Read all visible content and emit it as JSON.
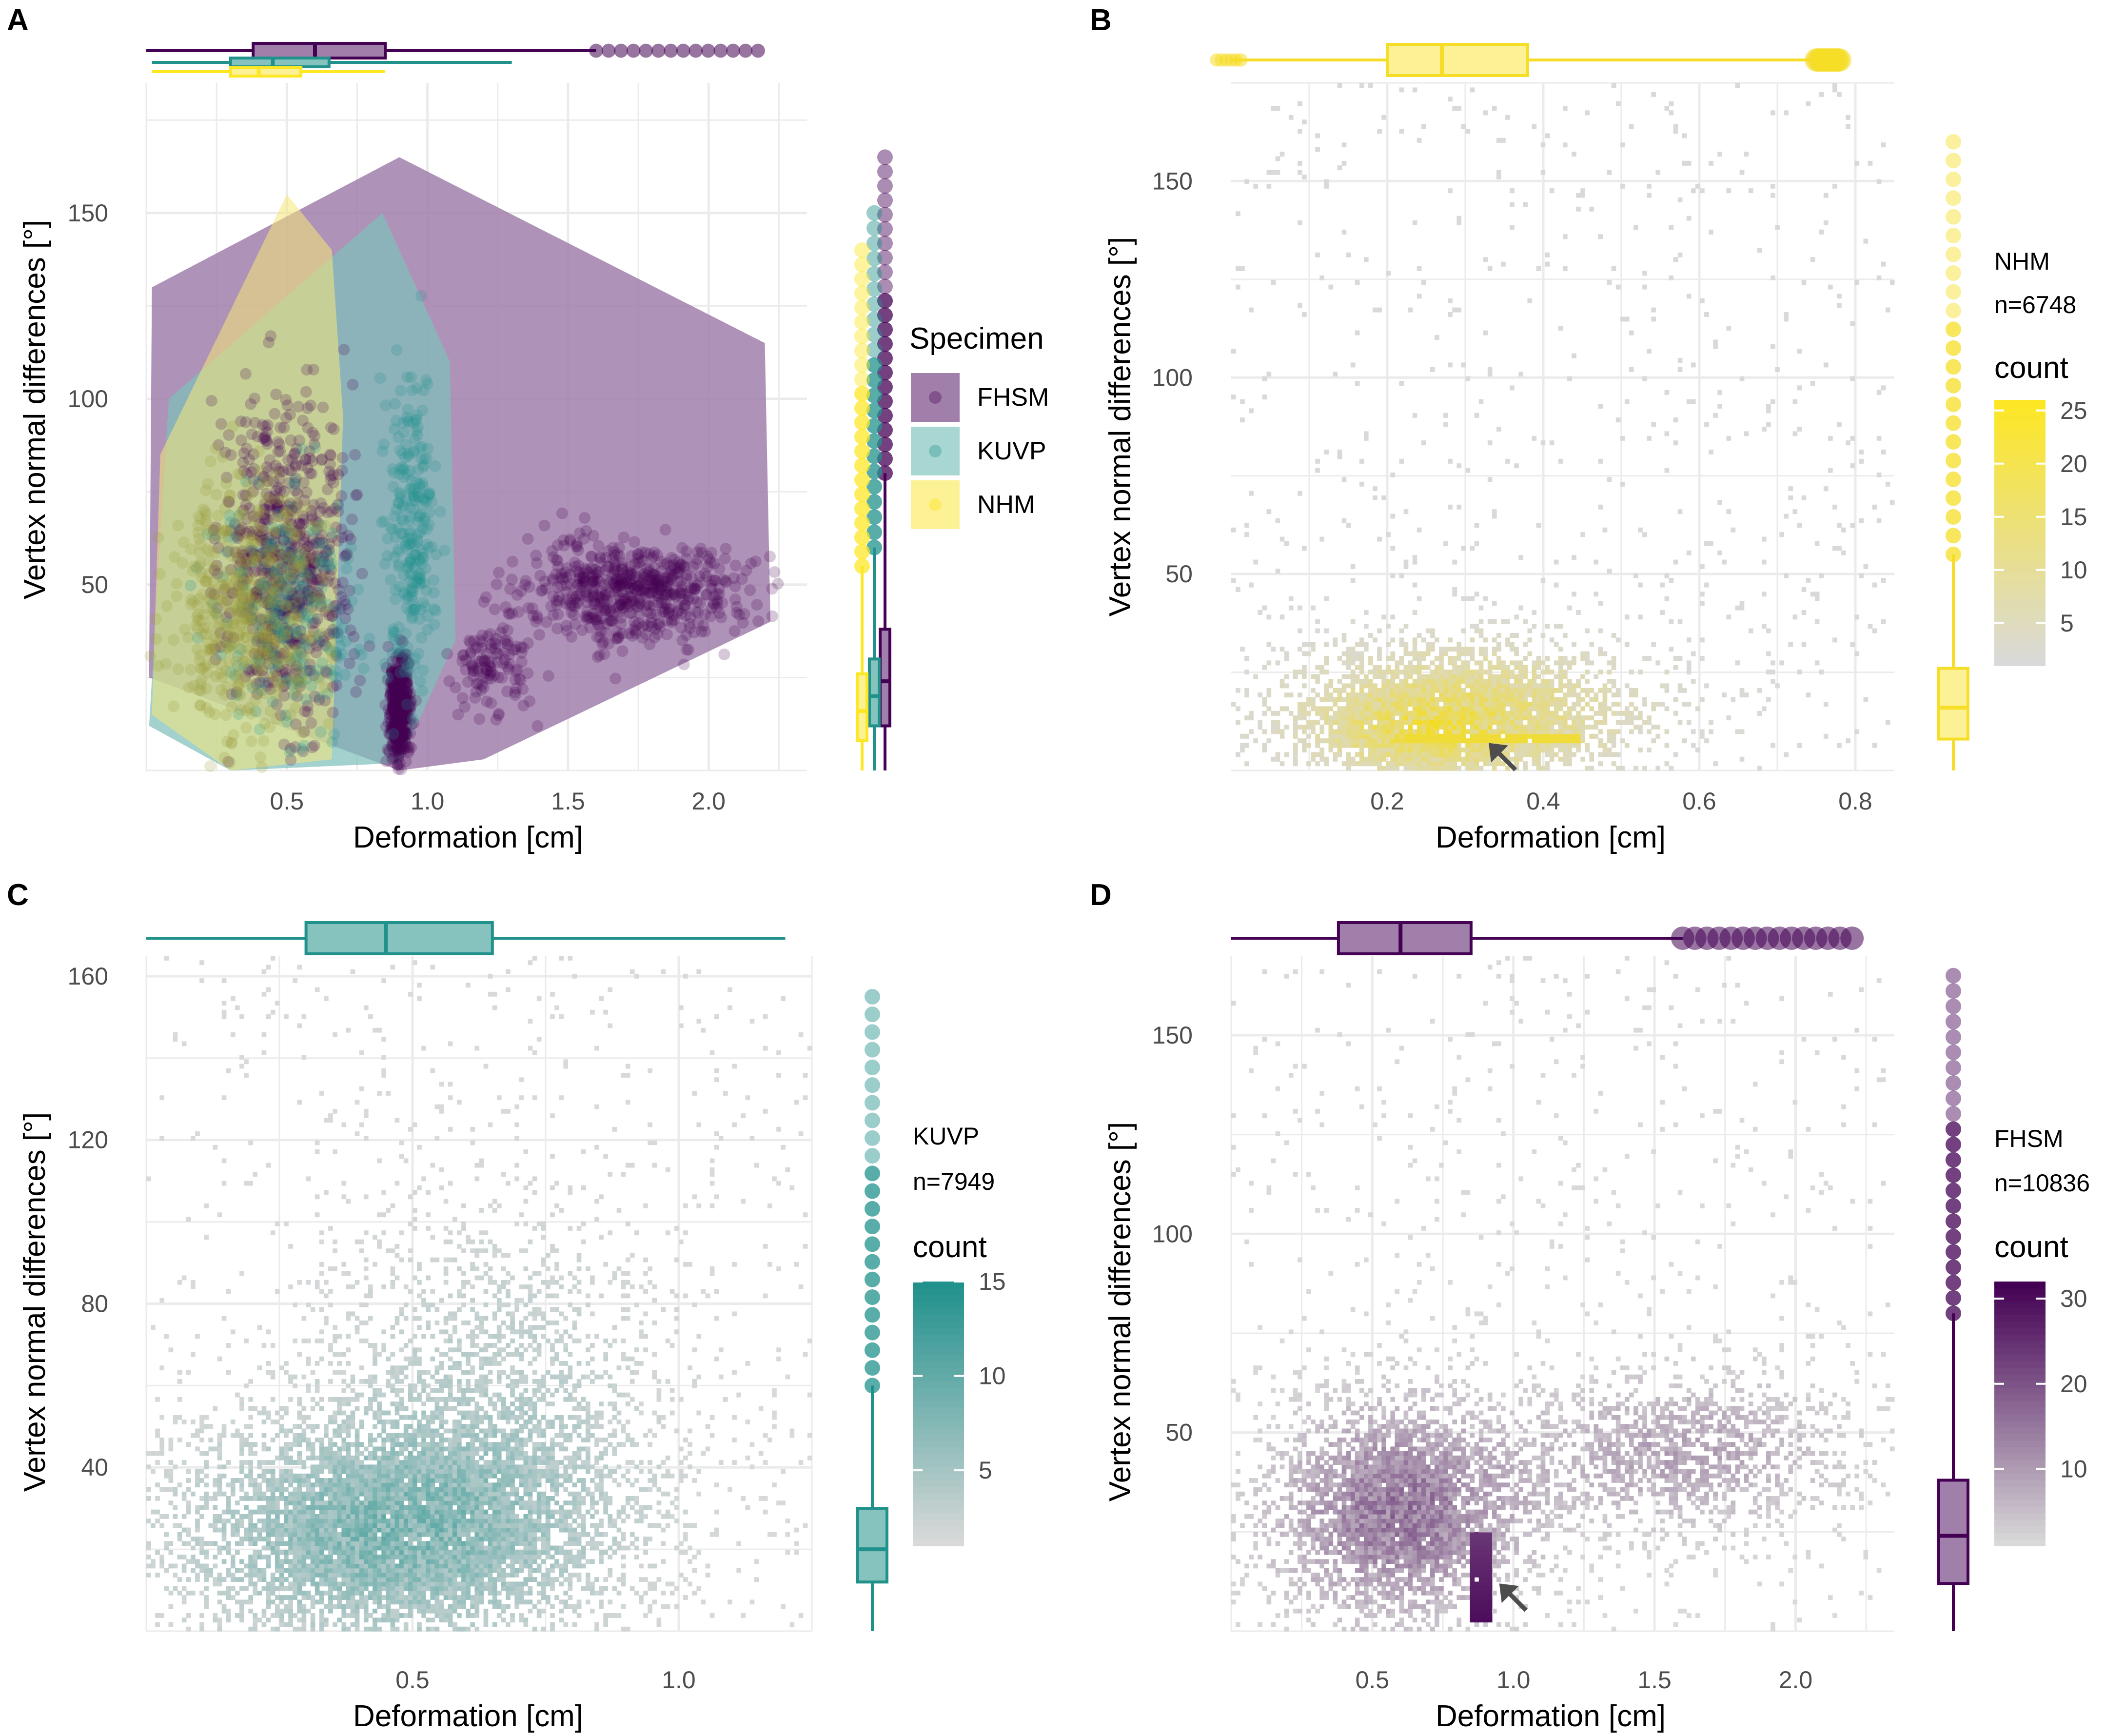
{
  "colors": {
    "FHSM": "#440154",
    "FHSM_light": "#a17fab",
    "KUVP": "#21918c",
    "KUVP_light": "#86c3bf",
    "NHM": "#fde725",
    "NHM_light": "#fdf196",
    "grid": "#ebebeb",
    "low": "#d9d9d9",
    "axis_text": "#4d4d4d"
  },
  "chart_data": [
    {
      "panel": "A",
      "type": "scatter",
      "xlabel": "Deformation [cm]",
      "ylabel": "Vertex normal differences [°]",
      "x_ticks": [
        0.5,
        1.0,
        1.5,
        2.0
      ],
      "x_tick_labels": [
        "0.5",
        "1.0",
        "1.5",
        "2.0"
      ],
      "y_ticks": [
        50,
        100,
        150
      ],
      "y_tick_labels": [
        "50",
        "100",
        "150"
      ],
      "xlim": [
        0,
        2.35
      ],
      "ylim": [
        0,
        185
      ],
      "legend": {
        "title": "Specimen",
        "position": "right",
        "entries": [
          "FHSM",
          "KUVP",
          "NHM"
        ]
      },
      "series": [
        {
          "name": "FHSM",
          "hull": [
            [
              0.02,
              130
            ],
            [
              0.9,
              165
            ],
            [
              2.2,
              115
            ],
            [
              2.22,
              40
            ],
            [
              1.2,
              3
            ],
            [
              0.9,
              0
            ],
            [
              0.01,
              25
            ]
          ],
          "clusters": [
            {
              "x": [
                0.25,
                0.75
              ],
              "y": [
                10,
                110
              ],
              "n": 700
            },
            {
              "x": [
                0.86,
                0.94
              ],
              "y": [
                2,
                35
              ],
              "n": 500
            },
            {
              "x": [
                1.25,
                2.2
              ],
              "y": [
                35,
                65
              ],
              "n": 600
            },
            {
              "x": [
                1.05,
                1.4
              ],
              "y": [
                15,
                45
              ],
              "n": 120
            }
          ],
          "marginal_x_box": {
            "whisker_low": 0.0,
            "q1": 0.38,
            "median": 0.6,
            "q3": 0.85,
            "whisker_high": 1.6,
            "outliers_to": 2.22
          },
          "marginal_y_box": {
            "whisker_low": 0,
            "q1": 12,
            "median": 24,
            "q3": 38,
            "whisker_high": 80,
            "outliers_to": 165
          }
        },
        {
          "name": "KUVP",
          "hull": [
            [
              0.08,
              100
            ],
            [
              0.84,
              150
            ],
            [
              1.08,
              110
            ],
            [
              1.1,
              35
            ],
            [
              0.9,
              2
            ],
            [
              0.3,
              0
            ],
            [
              0.01,
              12
            ]
          ],
          "clusters": [
            {
              "x": [
                0.2,
                0.8
              ],
              "y": [
                10,
                80
              ],
              "n": 250
            },
            {
              "x": [
                0.85,
                1.05
              ],
              "y": [
                20,
                115
              ],
              "n": 250
            }
          ],
          "marginal_x_box": {
            "whisker_low": 0.02,
            "q1": 0.3,
            "median": 0.45,
            "q3": 0.65,
            "whisker_high": 1.3
          },
          "marginal_y_box": {
            "whisker_low": 0,
            "q1": 12,
            "median": 20,
            "q3": 30,
            "whisker_high": 60,
            "outliers_to": 150
          }
        },
        {
          "name": "NHM",
          "hull": [
            [
              0.05,
              85
            ],
            [
              0.5,
              155
            ],
            [
              0.66,
              140
            ],
            [
              0.7,
              95
            ],
            [
              0.66,
              3
            ],
            [
              0.3,
              0
            ],
            [
              0.02,
              15
            ]
          ],
          "clusters": [
            {
              "x": [
                0.05,
                0.65
              ],
              "y": [
                5,
                90
              ],
              "n": 500
            }
          ],
          "marginal_x_box": {
            "whisker_low": 0.02,
            "q1": 0.3,
            "median": 0.4,
            "q3": 0.55,
            "whisker_high": 0.85
          },
          "marginal_y_box": {
            "whisker_low": 0,
            "q1": 8,
            "median": 16,
            "q3": 26,
            "whisker_high": 55,
            "outliers_to": 140
          }
        }
      ]
    },
    {
      "panel": "B",
      "type": "heatmap",
      "specimen": "NHM",
      "annotation": "NHM",
      "n_label": "n=6748",
      "xlabel": "Deformation [cm]",
      "ylabel": "Vertex normal differences [°]",
      "x_ticks": [
        0.2,
        0.4,
        0.6,
        0.8
      ],
      "x_tick_labels": [
        "0.2",
        "0.4",
        "0.6",
        "0.8"
      ],
      "y_ticks": [
        50,
        100,
        150
      ],
      "y_tick_labels": [
        "50",
        "100",
        "150"
      ],
      "xlim": [
        0,
        0.85
      ],
      "ylim": [
        0,
        175
      ],
      "legend": {
        "title": "count",
        "ticks": [
          5,
          10,
          15,
          20,
          25
        ],
        "max": 26,
        "position": "right"
      },
      "density": [
        {
          "x": 0.3,
          "y": 15,
          "sx": 0.14,
          "sy": 11,
          "w": 1.0
        },
        {
          "x": 0.25,
          "y": 10,
          "sx": 0.08,
          "sy": 6,
          "w": 0.8
        }
      ],
      "ridges": [
        {
          "x": [
            0.22,
            0.45
          ],
          "y": 8,
          "w": 1.0
        }
      ],
      "arrow_at": {
        "x": 0.33,
        "y": 7
      },
      "marginal_x_box": {
        "whisker_low": 0.0,
        "q1": 0.2,
        "median": 0.27,
        "q3": 0.38,
        "whisker_high": 0.75,
        "outliers_from": 0.0,
        "outliers_to": 0.78
      },
      "marginal_y_box": {
        "whisker_low": 0,
        "q1": 8,
        "median": 16,
        "q3": 26,
        "whisker_high": 55,
        "outliers_to": 160
      }
    },
    {
      "panel": "C",
      "type": "heatmap",
      "specimen": "KUVP",
      "annotation": "KUVP",
      "n_label": "n=7949",
      "xlabel": "Deformation [cm]",
      "ylabel": "Vertex normal differences [°]",
      "x_ticks": [
        0.5,
        1.0
      ],
      "x_tick_labels": [
        "0.5",
        "1.0"
      ],
      "y_ticks": [
        40,
        80,
        120,
        160
      ],
      "y_tick_labels": [
        "40",
        "80",
        "120",
        "160"
      ],
      "xlim": [
        0,
        1.25
      ],
      "ylim": [
        0,
        165
      ],
      "legend": {
        "title": "count",
        "ticks": [
          5,
          10,
          15
        ],
        "max": 15,
        "position": "right"
      },
      "density": [
        {
          "x": 0.45,
          "y": 24,
          "sx": 0.24,
          "sy": 17,
          "w": 1.0
        },
        {
          "x": 0.65,
          "y": 55,
          "sx": 0.2,
          "sy": 28,
          "w": 0.35
        }
      ],
      "ridges": [],
      "marginal_x_box": {
        "whisker_low": 0.0,
        "q1": 0.3,
        "median": 0.45,
        "q3": 0.65,
        "whisker_high": 1.2
      },
      "marginal_y_box": {
        "whisker_low": 0,
        "q1": 12,
        "median": 20,
        "q3": 30,
        "whisker_high": 60,
        "outliers_to": 155
      }
    },
    {
      "panel": "D",
      "type": "heatmap",
      "specimen": "FHSM",
      "annotation": "FHSM",
      "n_label": "n=10836",
      "xlabel": "Deformation [cm]",
      "ylabel": "Vertex normal differences [°]",
      "x_ticks": [
        0.5,
        1.0,
        1.5,
        2.0
      ],
      "x_tick_labels": [
        "0.5",
        "1.0",
        "1.5",
        "2.0"
      ],
      "y_ticks": [
        50,
        100,
        150
      ],
      "y_tick_labels": [
        "50",
        "100",
        "150"
      ],
      "xlim": [
        0,
        2.35
      ],
      "ylim": [
        0,
        170
      ],
      "legend": {
        "title": "count",
        "ticks": [
          10,
          20,
          30
        ],
        "max": 32,
        "position": "right"
      },
      "density": [
        {
          "x": 0.6,
          "y": 30,
          "sx": 0.28,
          "sy": 17,
          "w": 1.0
        },
        {
          "x": 1.6,
          "y": 45,
          "sx": 0.35,
          "sy": 12,
          "w": 0.55
        }
      ],
      "ridges": [
        {
          "x": [
            0.85,
            0.92
          ],
          "y": [
            2,
            25
          ],
          "w": 1.0,
          "vertical": true
        }
      ],
      "arrow_at": {
        "x": 0.95,
        "y": 12
      },
      "marginal_x_box": {
        "whisker_low": 0.0,
        "q1": 0.38,
        "median": 0.6,
        "q3": 0.85,
        "whisker_high": 1.6,
        "outliers_to": 2.2
      },
      "marginal_y_box": {
        "whisker_low": 0,
        "q1": 12,
        "median": 24,
        "q3": 38,
        "whisker_high": 80,
        "outliers_to": 165
      }
    }
  ]
}
